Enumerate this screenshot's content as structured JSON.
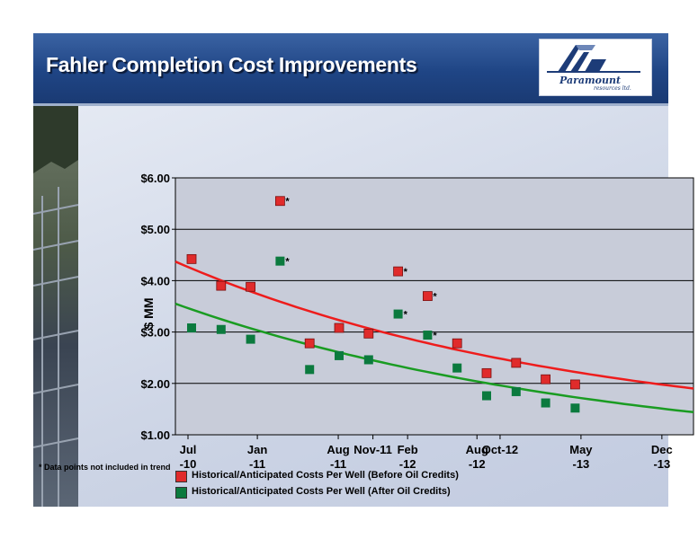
{
  "header": {
    "title": "Fahler Completion Cost Improvements"
  },
  "logo": {
    "wordmark": "Paramount",
    "tagline": "resources ltd."
  },
  "colors": {
    "red_series": "#e02b2b",
    "green_series": "#0b7a3e",
    "red_trend": "#ee1c1c",
    "green_trend": "#1a9c22",
    "plot_bg": "#c8ccd9"
  },
  "footnote": "* Data points not included in trend",
  "chart_data": {
    "type": "scatter",
    "ylabel": "$ MM",
    "ylim": [
      1,
      6
    ],
    "y_ticks": [
      "$1.00",
      "$2.00",
      "$3.00",
      "$4.00",
      "$5.00",
      "$6.00"
    ],
    "grid": true,
    "legend_placement": "bottom-left",
    "x_ticks": [
      {
        "top": "Jul",
        "bottom": "-10",
        "month_index": 0
      },
      {
        "top": "Jan",
        "bottom": "-11",
        "month_index": 6
      },
      {
        "top": "Aug",
        "bottom": "-11",
        "month_index": 13
      },
      {
        "top": "Nov-11",
        "bottom": "",
        "month_index": 16
      },
      {
        "top": "Feb",
        "bottom": "-12",
        "month_index": 19
      },
      {
        "top": "Aug",
        "bottom": "-12",
        "month_index": 25
      },
      {
        "top": "Oct-12",
        "bottom": "",
        "month_index": 27
      },
      {
        "top": "May",
        "bottom": "-13",
        "month_index": 34
      },
      {
        "top": "Dec",
        "bottom": "-13",
        "month_index": 41
      }
    ],
    "series": [
      {
        "name": "Historical/Anticipated Costs Per Well (Before Oil Credits)",
        "color": "#e02b2b",
        "points": [
          {
            "x": 1,
            "y": 4.42,
            "excluded": false
          },
          {
            "x": 2,
            "y": 3.9,
            "excluded": false
          },
          {
            "x": 3,
            "y": 3.88,
            "excluded": false
          },
          {
            "x": 4,
            "y": 5.55,
            "excluded": true
          },
          {
            "x": 5,
            "y": 2.78,
            "excluded": false
          },
          {
            "x": 6,
            "y": 3.08,
            "excluded": false
          },
          {
            "x": 7,
            "y": 2.97,
            "excluded": false
          },
          {
            "x": 8,
            "y": 4.18,
            "excluded": true
          },
          {
            "x": 9,
            "y": 3.7,
            "excluded": true
          },
          {
            "x": 10,
            "y": 2.78,
            "excluded": false
          },
          {
            "x": 11,
            "y": 2.2,
            "excluded": false
          },
          {
            "x": 12,
            "y": 2.4,
            "excluded": false
          },
          {
            "x": 13,
            "y": 2.08,
            "excluded": false
          },
          {
            "x": 14,
            "y": 1.98,
            "excluded": false
          }
        ],
        "trend": [
          4.37,
          1.9
        ]
      },
      {
        "name": "Historical/Anticipated Costs Per Well (After Oil Credits)",
        "color": "#0b7a3e",
        "points": [
          {
            "x": 1,
            "y": 3.08,
            "excluded": false
          },
          {
            "x": 2,
            "y": 3.05,
            "excluded": false
          },
          {
            "x": 3,
            "y": 2.86,
            "excluded": false
          },
          {
            "x": 4,
            "y": 4.38,
            "excluded": true
          },
          {
            "x": 5,
            "y": 2.27,
            "excluded": false
          },
          {
            "x": 6,
            "y": 2.54,
            "excluded": false
          },
          {
            "x": 7,
            "y": 2.46,
            "excluded": false
          },
          {
            "x": 8,
            "y": 3.35,
            "excluded": true
          },
          {
            "x": 9,
            "y": 2.94,
            "excluded": true
          },
          {
            "x": 10,
            "y": 2.3,
            "excluded": false
          },
          {
            "x": 11,
            "y": 1.76,
            "excluded": false
          },
          {
            "x": 12,
            "y": 1.84,
            "excluded": false
          },
          {
            "x": 13,
            "y": 1.62,
            "excluded": false
          },
          {
            "x": 14,
            "y": 1.52,
            "excluded": false
          }
        ],
        "trend": [
          3.55,
          1.44
        ]
      }
    ]
  }
}
